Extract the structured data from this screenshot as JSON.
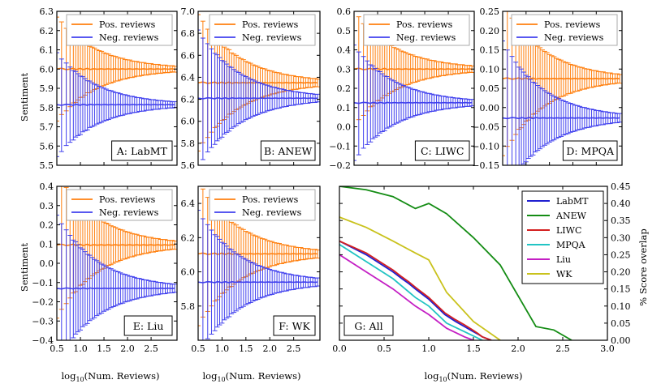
{
  "chart_data": {
    "type": "line",
    "panels": [
      {
        "id": "A",
        "label": "A: LabMT",
        "ylim": [
          5.5,
          6.3
        ],
        "yticks": [
          5.5,
          5.6,
          5.7,
          5.8,
          5.9,
          6.0,
          6.1,
          6.2,
          6.3
        ],
        "tick_labels": [
          "5.5",
          "5.6",
          "5.7",
          "5.8",
          "5.9",
          "6.0",
          "6.1",
          "6.2",
          "6.3"
        ],
        "xlim": [
          0.5,
          3.05
        ],
        "pos_mean": 6.0,
        "neg_mean": 5.815,
        "err0": 0.27
      },
      {
        "id": "B",
        "label": "B: ANEW",
        "ylim": [
          5.6,
          7.0
        ],
        "yticks": [
          5.6,
          5.8,
          6.0,
          6.2,
          6.4,
          6.6,
          6.8,
          7.0
        ],
        "tick_labels": [
          "5.6",
          "5.8",
          "6.0",
          "6.2",
          "6.4",
          "6.6",
          "6.8",
          "7.0"
        ],
        "xlim": [
          0.5,
          3.05
        ],
        "pos_mean": 6.35,
        "neg_mean": 6.21,
        "err0": 0.62
      },
      {
        "id": "C",
        "label": "C: LIWC",
        "ylim": [
          -0.2,
          0.6
        ],
        "yticks": [
          -0.2,
          -0.1,
          0.0,
          0.1,
          0.2,
          0.3,
          0.4,
          0.5,
          0.6
        ],
        "tick_labels": [
          "−0.2",
          "−0.1",
          "0.0",
          "0.1",
          "0.2",
          "0.3",
          "0.4",
          "0.5",
          "0.6"
        ],
        "xlim": [
          0.5,
          3.05
        ],
        "pos_mean": 0.3,
        "neg_mean": 0.125,
        "err0": 0.3
      },
      {
        "id": "D",
        "label": "D: MPQA",
        "ylim": [
          -0.15,
          0.25
        ],
        "yticks": [
          -0.15,
          -0.1,
          -0.05,
          0.0,
          0.05,
          0.1,
          0.15,
          0.2,
          0.25
        ],
        "tick_labels": [
          "−0.15",
          "−0.10",
          "−0.05",
          "0.00",
          "0.05",
          "0.10",
          "0.15",
          "0.20",
          "0.25"
        ],
        "xlim": [
          0.5,
          3.05
        ],
        "pos_mean": 0.075,
        "neg_mean": -0.027,
        "err0": 0.2
      },
      {
        "id": "E",
        "label": "E: Liu",
        "ylim": [
          -0.4,
          0.4
        ],
        "yticks": [
          -0.4,
          -0.3,
          -0.2,
          -0.1,
          0.0,
          0.1,
          0.2,
          0.3,
          0.4
        ],
        "tick_labels": [
          "−0.4",
          "−0.3",
          "−0.2",
          "−0.1",
          "0.0",
          "0.1",
          "0.2",
          "0.3",
          "0.4"
        ],
        "xlim": [
          0.5,
          3.05
        ],
        "xticks": [
          0.5,
          1.0,
          1.5,
          2.0,
          2.5
        ],
        "xtick_labels": [
          "0.5",
          "1.0",
          "1.5",
          "2.0",
          "2.5"
        ],
        "pos_mean": 0.095,
        "neg_mean": -0.13,
        "err0": 0.38
      },
      {
        "id": "F",
        "label": "F: WK",
        "ylim": [
          5.6,
          6.5
        ],
        "yticks": [
          5.8,
          6.0,
          6.2,
          6.4
        ],
        "tick_labels": [
          "5.8",
          "6.0",
          "6.2",
          "6.4"
        ],
        "xlim": [
          0.5,
          3.05
        ],
        "xticks": [
          0.5,
          1.0,
          1.5,
          2.0,
          2.5
        ],
        "xtick_labels": [
          "0.5",
          "1.0",
          "1.5",
          "2.0",
          "2.5"
        ],
        "pos_mean": 6.105,
        "neg_mean": 5.94,
        "err0": 0.42
      }
    ],
    "legend": [
      "Pos. reviews",
      "Neg. reviews"
    ],
    "ylabel": "Sentiment",
    "xlabel": "log10(Num. Reviews)",
    "overlap": {
      "label": "G: All",
      "xlim": [
        0.0,
        3.0
      ],
      "ylim": [
        0.0,
        0.45
      ],
      "xticks": [
        0.0,
        0.5,
        1.0,
        1.5,
        2.0,
        2.5,
        3.0
      ],
      "xtick_labels": [
        "0.0",
        "0.5",
        "1.0",
        "1.5",
        "2.0",
        "2.5",
        "3.0"
      ],
      "yticks": [
        0.0,
        0.05,
        0.1,
        0.15,
        0.2,
        0.25,
        0.3,
        0.35,
        0.4,
        0.45
      ],
      "ytick_labels": [
        "0.00",
        "0.05",
        "0.10",
        "0.15",
        "0.20",
        "0.25",
        "0.30",
        "0.35",
        "0.40",
        "0.45"
      ],
      "ylabel": "% Score overlap",
      "xlabel": "log10(Num. Reviews)",
      "series": [
        {
          "name": "LabMT",
          "x": [
            0,
            0.3,
            0.48,
            0.6,
            0.7,
            0.78,
            0.85,
            0.9,
            0.95,
            1.0,
            1.18,
            1.3,
            1.4,
            1.48,
            1.55,
            1.6,
            1.7
          ],
          "y": [
            0.29,
            0.25,
            0.22,
            0.2,
            0.18,
            0.165,
            0.15,
            0.14,
            0.13,
            0.12,
            0.075,
            0.055,
            0.04,
            0.028,
            0.018,
            0.01,
            0.0
          ],
          "color": "#1f1fd1"
        },
        {
          "name": "ANEW",
          "x": [
            0,
            0.3,
            0.6,
            0.85,
            1.0,
            1.2,
            1.5,
            1.8,
            2.0,
            2.2,
            2.4,
            2.6
          ],
          "y": [
            0.45,
            0.44,
            0.42,
            0.385,
            0.4,
            0.37,
            0.3,
            0.22,
            0.13,
            0.04,
            0.03,
            0.0
          ],
          "color": "#148c14"
        },
        {
          "name": "LIWC",
          "x": [
            0,
            0.3,
            0.48,
            0.6,
            0.7,
            0.78,
            0.85,
            0.9,
            0.95,
            1.0,
            1.18,
            1.3,
            1.4,
            1.48,
            1.55,
            1.6,
            1.7
          ],
          "y": [
            0.29,
            0.255,
            0.225,
            0.205,
            0.185,
            0.17,
            0.155,
            0.145,
            0.135,
            0.125,
            0.08,
            0.06,
            0.045,
            0.032,
            0.02,
            0.01,
            0.0
          ],
          "color": "#d42020"
        },
        {
          "name": "MPQA",
          "x": [
            0,
            0.3,
            0.6,
            0.85,
            1.0,
            1.2,
            1.4,
            1.6
          ],
          "y": [
            0.28,
            0.23,
            0.18,
            0.125,
            0.1,
            0.05,
            0.025,
            0.0
          ],
          "color": "#22c4c4"
        },
        {
          "name": "Liu",
          "x": [
            0,
            0.3,
            0.6,
            0.85,
            1.0,
            1.2,
            1.4,
            1.5
          ],
          "y": [
            0.25,
            0.2,
            0.15,
            0.1,
            0.075,
            0.035,
            0.01,
            0.0
          ],
          "color": "#c41fc4"
        },
        {
          "name": "WK",
          "x": [
            0,
            0.3,
            0.6,
            0.85,
            1.0,
            1.2,
            1.5,
            1.8
          ],
          "y": [
            0.36,
            0.33,
            0.29,
            0.255,
            0.235,
            0.14,
            0.055,
            0.0
          ],
          "color": "#c9c21c"
        }
      ]
    },
    "colors": {
      "pos": "#ff7f0e",
      "neg": "#4040ee"
    }
  }
}
